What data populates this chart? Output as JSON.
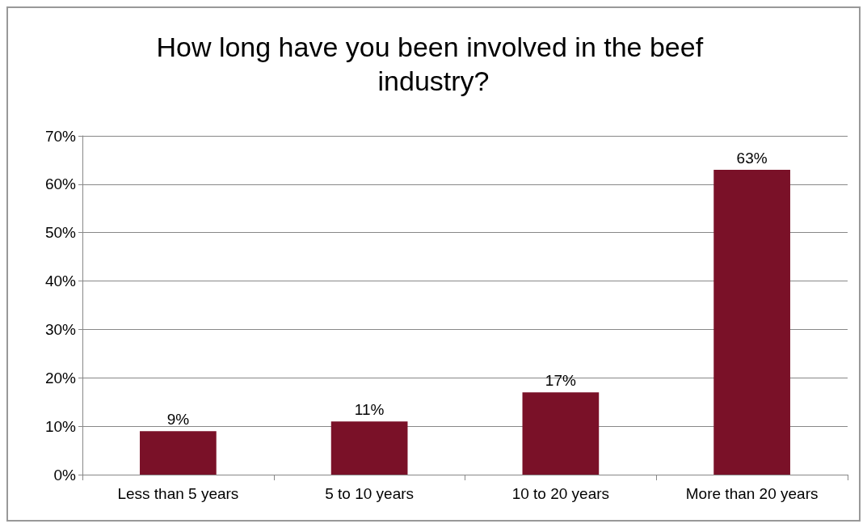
{
  "chart_data": {
    "type": "bar",
    "title": "How long have you been involved in the beef industry?",
    "categories": [
      "Less than 5 years",
      "5 to 10 years",
      "10 to 20 years",
      "More than 20 years"
    ],
    "values": [
      9,
      11,
      17,
      63
    ],
    "color": "#7a1128",
    "value_labels": [
      "9%",
      "11%",
      "17%",
      "63%"
    ],
    "ylim": [
      0,
      70
    ],
    "yticks": [
      {
        "value": 0,
        "label": "0%"
      },
      {
        "value": 10,
        "label": "10%"
      },
      {
        "value": 20,
        "label": "20%"
      },
      {
        "value": 30,
        "label": "30%"
      },
      {
        "value": 40,
        "label": "40%"
      },
      {
        "value": 50,
        "label": "50%"
      },
      {
        "value": 60,
        "label": "60%"
      },
      {
        "value": 70,
        "label": "70%"
      }
    ],
    "grid": "y"
  }
}
